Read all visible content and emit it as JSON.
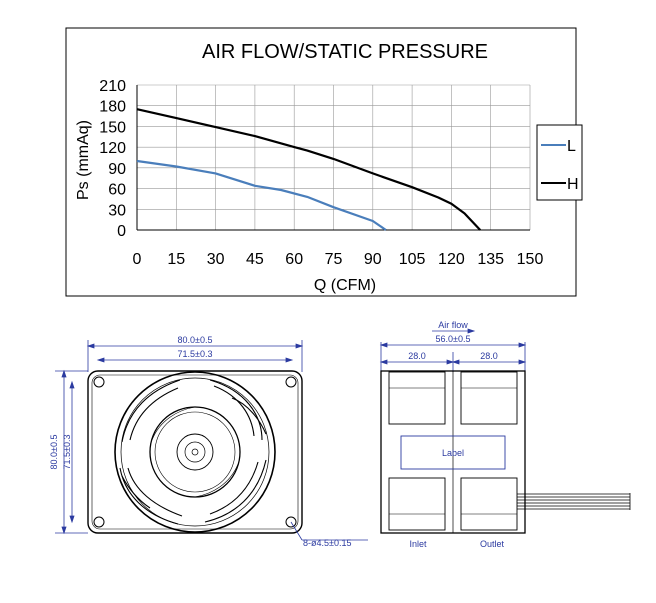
{
  "chart_data": {
    "type": "line",
    "title": "AIR FLOW/STATIC PRESSURE",
    "xlabel": "Q (CFM)",
    "ylabel": "Ps (mmAq)",
    "xlim": [
      0,
      150
    ],
    "ylim": [
      0,
      210
    ],
    "x_ticks": [
      "0",
      "15",
      "30",
      "45",
      "60",
      "75",
      "90",
      "105",
      "120",
      "135",
      "150"
    ],
    "y_ticks": [
      "0",
      "30",
      "60",
      "90",
      "120",
      "150",
      "180",
      "210"
    ],
    "grid": true,
    "legend_position": "right",
    "series": [
      {
        "name": "L",
        "color": "#4a7ebb",
        "points": [
          [
            0,
            100
          ],
          [
            15,
            92
          ],
          [
            30,
            82
          ],
          [
            45,
            64
          ],
          [
            55,
            58
          ],
          [
            65,
            48
          ],
          [
            75,
            33
          ],
          [
            90,
            13
          ],
          [
            95,
            0
          ]
        ]
      },
      {
        "name": "H",
        "color": "#000000",
        "points": [
          [
            0,
            175
          ],
          [
            15,
            162
          ],
          [
            30,
            149
          ],
          [
            45,
            136
          ],
          [
            60,
            120
          ],
          [
            65,
            115
          ],
          [
            75,
            103
          ],
          [
            90,
            82
          ],
          [
            105,
            62
          ],
          [
            115,
            47
          ],
          [
            120,
            38
          ],
          [
            125,
            24
          ],
          [
            131,
            0
          ]
        ]
      }
    ]
  },
  "drawing": {
    "front": {
      "overall_width": "80.0±0.5",
      "hole_spacing_width": "71.5±0.3",
      "overall_height": "80.0±0.5",
      "hole_spacing_height": "71.5±0.3",
      "hole_note": "8-ø4.5±0.15"
    },
    "side": {
      "air_flow": "Air flow",
      "depth": "56.0±0.5",
      "half_left": "28.0",
      "half_right": "28.0",
      "label": "Label",
      "inlet": "Inlet",
      "outlet": "Outlet"
    }
  }
}
